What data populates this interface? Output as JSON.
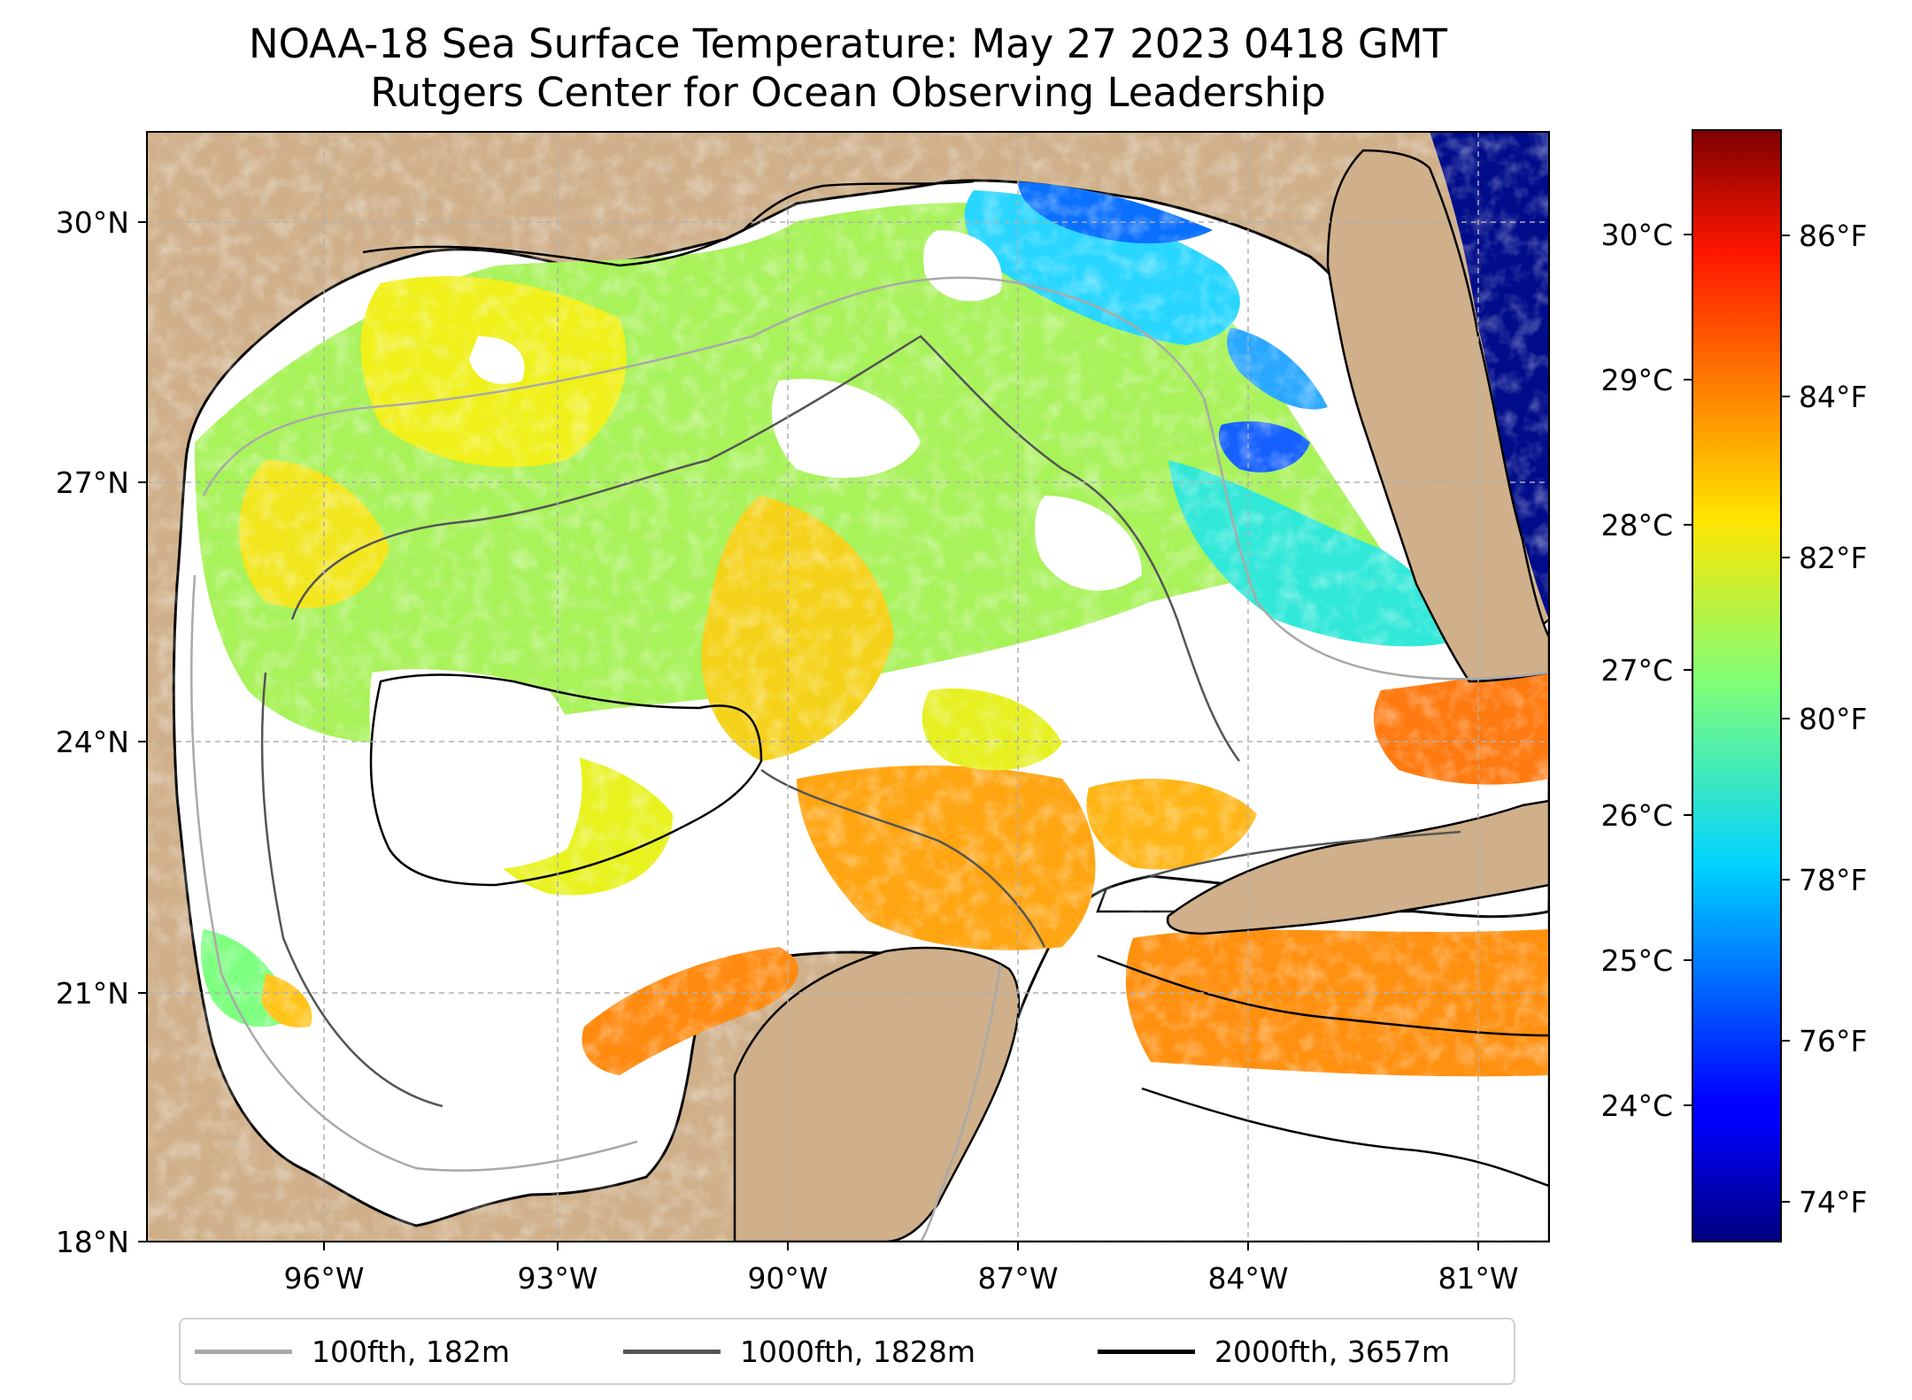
{
  "title": {
    "line1": "NOAA-18 Sea Surface Temperature: May 27 2023 0418 GMT",
    "line2": "Rutgers Center for Ocean Observing Leadership"
  },
  "map": {
    "extent": {
      "lon_min": -98.3,
      "lon_max": -79.8,
      "lat_min": 18.0,
      "lat_max": 30.8
    },
    "lat_ticks": [
      {
        "value": 30,
        "label": "30°N"
      },
      {
        "value": 27,
        "label": "27°N"
      },
      {
        "value": 24,
        "label": "24°N"
      },
      {
        "value": 21,
        "label": "21°N"
      },
      {
        "value": 18,
        "label": "18°N"
      }
    ],
    "lon_ticks": [
      {
        "value": -96,
        "label": "96°W"
      },
      {
        "value": -93,
        "label": "93°W"
      },
      {
        "value": -90,
        "label": "90°W"
      },
      {
        "value": -87,
        "label": "87°W"
      },
      {
        "value": -84,
        "label": "84°W"
      },
      {
        "value": -81,
        "label": "81°W"
      }
    ],
    "land_color": "#cfb08a",
    "no_data_color": "#ffffff",
    "lake_color": "#9fb8e0",
    "gridlines": true
  },
  "colorbar": {
    "colormap": "jet",
    "celsius_ticks": [
      {
        "value": 30,
        "label": "30°C"
      },
      {
        "value": 29,
        "label": "29°C"
      },
      {
        "value": 28,
        "label": "28°C"
      },
      {
        "value": 27,
        "label": "27°C"
      },
      {
        "value": 26,
        "label": "26°C"
      },
      {
        "value": 25,
        "label": "25°C"
      },
      {
        "value": 24,
        "label": "24°C"
      }
    ],
    "fahrenheit_ticks": [
      {
        "value": 86,
        "label": "86°F"
      },
      {
        "value": 84,
        "label": "84°F"
      },
      {
        "value": 82,
        "label": "82°F"
      },
      {
        "value": 80,
        "label": "80°F"
      },
      {
        "value": 78,
        "label": "78°F"
      },
      {
        "value": 76,
        "label": "76°F"
      },
      {
        "value": 74,
        "label": "74°F"
      }
    ]
  },
  "legend": {
    "items": [
      {
        "label": "100fth, 182m",
        "color": "#a9a9a9"
      },
      {
        "label": "1000fth, 1828m",
        "color": "#555555"
      },
      {
        "label": "2000fth, 3657m",
        "color": "#000000"
      }
    ]
  }
}
